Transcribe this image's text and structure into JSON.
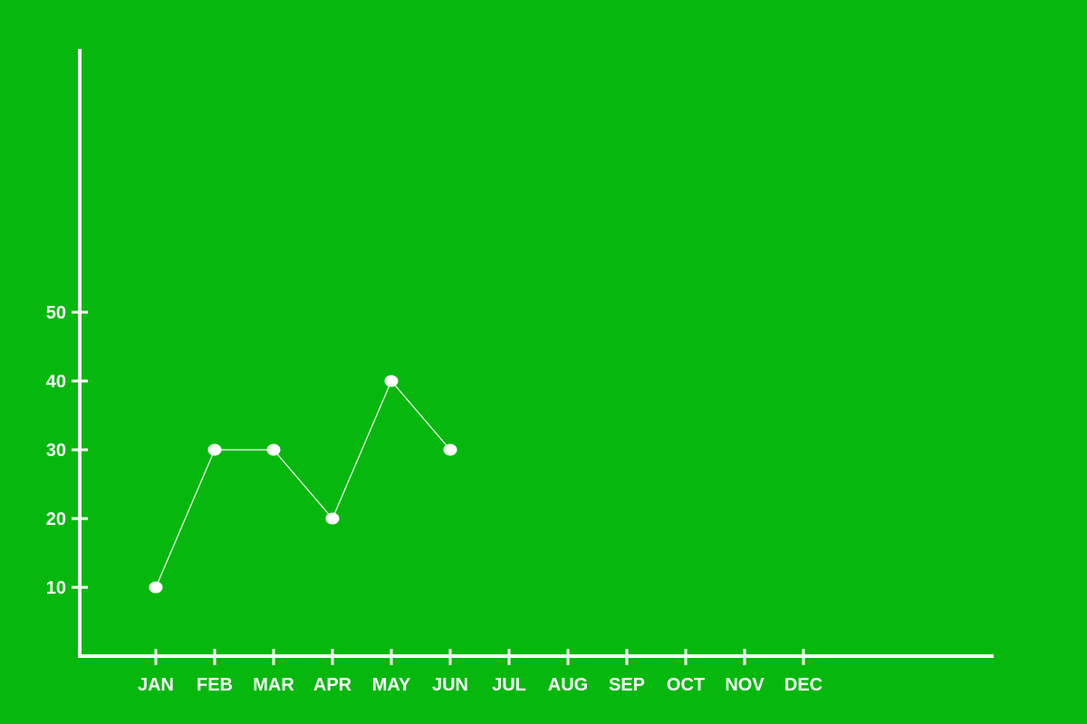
{
  "colors": {
    "background": "#06b80e",
    "foreground": "#ffffff"
  },
  "chart_data": {
    "type": "line",
    "categories": [
      "JAN",
      "FEB",
      "MAR",
      "APR",
      "MAY",
      "JUN",
      "JUL",
      "AUG",
      "SEP",
      "OCT",
      "NOV",
      "DEC"
    ],
    "series": [
      {
        "values": [
          10,
          30,
          30,
          20,
          40,
          30,
          null,
          null,
          null,
          null,
          null,
          null
        ]
      }
    ],
    "y_ticks": [
      10,
      20,
      30,
      40,
      50
    ],
    "ylim": [
      0,
      90
    ],
    "grid": false,
    "legend": "none",
    "title": "",
    "xlabel": "",
    "ylabel": ""
  }
}
